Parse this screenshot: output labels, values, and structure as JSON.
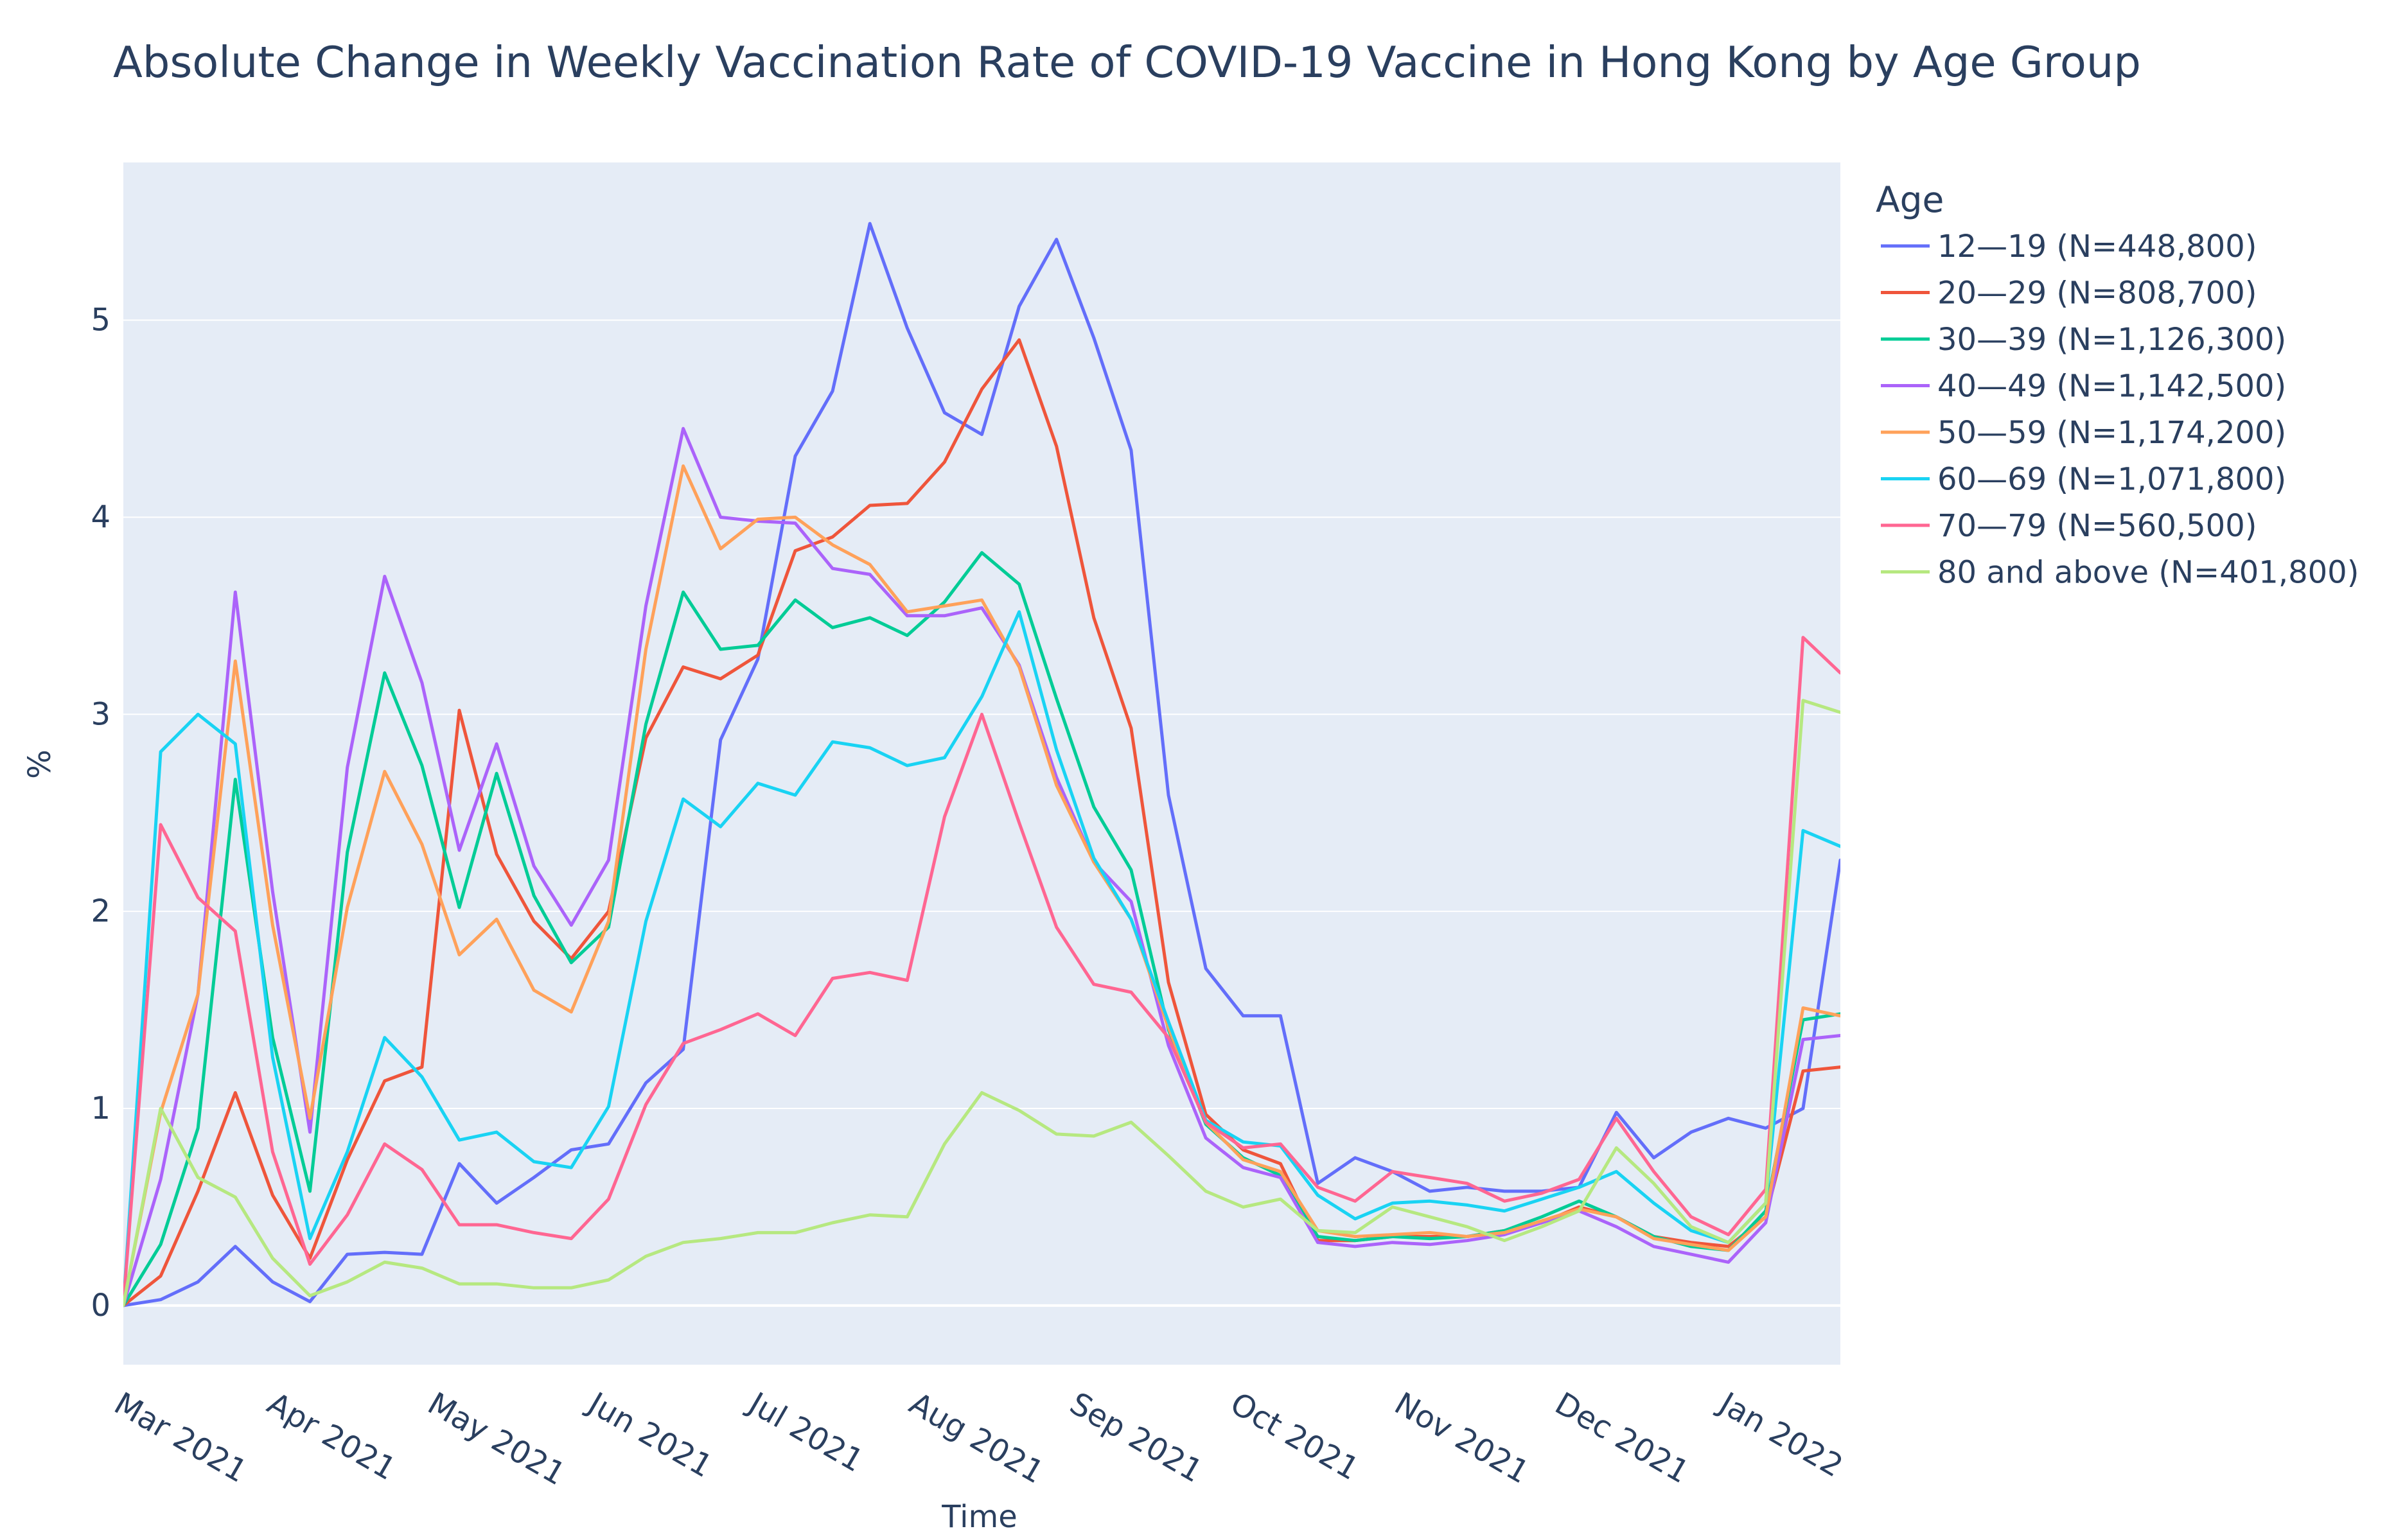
{
  "chart_data": {
    "type": "line",
    "title": "Absolute Change in Weekly Vaccination Rate of COVID-19 Vaccine in Hong Kong by Age Group",
    "xlabel": "Time",
    "ylabel": "%",
    "ylim": [
      -0.3,
      5.8
    ],
    "y_ticks": [
      0,
      1,
      2,
      3,
      4,
      5
    ],
    "x_ticks": [
      "Mar 2021",
      "Apr 2021",
      "May 2021",
      "Jun 2021",
      "Jul 2021",
      "Aug 2021",
      "Sep 2021",
      "Oct 2021",
      "Nov 2021",
      "Dec 2021",
      "Jan 2022"
    ],
    "x_tick_weeks": [
      0,
      4.1,
      8.4,
      12.7,
      17.0,
      21.3,
      25.6,
      29.9,
      34.3,
      38.6,
      43.0
    ],
    "x_weeks": [
      0,
      1,
      2,
      3,
      4,
      5,
      6,
      7,
      8,
      9,
      10,
      11,
      12,
      13,
      14,
      15,
      16,
      17,
      18,
      19,
      20,
      21,
      22,
      23,
      24,
      25,
      26,
      27,
      28,
      29,
      30,
      31,
      32,
      33,
      34,
      35,
      36,
      37,
      38,
      39,
      40,
      41,
      42,
      43,
      44,
      45,
      46
    ],
    "legend_title": "Age",
    "series": [
      {
        "name": "12—19 (N=448,800)",
        "color": "#636efa",
        "values": [
          0,
          0.03,
          0.12,
          0.3,
          0.12,
          0.02,
          0.26,
          0.27,
          0.26,
          0.72,
          0.52,
          0.65,
          0.79,
          0.82,
          1.13,
          1.3,
          2.87,
          3.28,
          4.31,
          4.64,
          5.49,
          4.96,
          4.53,
          4.42,
          5.07,
          5.41,
          4.91,
          4.34,
          2.59,
          1.71,
          1.47,
          1.47,
          0.62,
          0.75,
          0.68,
          0.58,
          0.6,
          0.58,
          0.58,
          0.6,
          0.98,
          0.75,
          0.88,
          0.95,
          0.9,
          1.0,
          2.26
        ]
      },
      {
        "name": "20—29 (N=808,700)",
        "color": "#ef553b",
        "values": [
          0,
          0.15,
          0.58,
          1.08,
          0.56,
          0.24,
          0.74,
          1.14,
          1.21,
          3.02,
          2.29,
          1.95,
          1.76,
          2.0,
          2.88,
          3.24,
          3.18,
          3.3,
          3.83,
          3.9,
          4.06,
          4.07,
          4.28,
          4.65,
          4.9,
          4.36,
          3.49,
          2.93,
          1.64,
          0.97,
          0.79,
          0.72,
          0.33,
          0.33,
          0.35,
          0.35,
          0.35,
          0.38,
          0.42,
          0.5,
          0.45,
          0.35,
          0.32,
          0.3,
          0.45,
          1.19,
          1.21
        ]
      },
      {
        "name": "30—39 (N=1,126,300)",
        "color": "#00cc96",
        "values": [
          0,
          0.31,
          0.9,
          2.67,
          1.36,
          0.58,
          2.3,
          3.21,
          2.74,
          2.02,
          2.7,
          2.08,
          1.74,
          1.92,
          2.95,
          3.62,
          3.33,
          3.35,
          3.58,
          3.44,
          3.49,
          3.4,
          3.57,
          3.82,
          3.66,
          3.08,
          2.53,
          2.21,
          1.4,
          0.92,
          0.75,
          0.66,
          0.35,
          0.33,
          0.35,
          0.34,
          0.35,
          0.38,
          0.45,
          0.53,
          0.45,
          0.35,
          0.3,
          0.28,
          0.48,
          1.45,
          1.48
        ]
      },
      {
        "name": "40—49 (N=1,142,500)",
        "color": "#ab63fa",
        "values": [
          0,
          0.64,
          1.58,
          3.62,
          2.1,
          0.88,
          2.73,
          3.7,
          3.16,
          2.31,
          2.85,
          2.23,
          1.93,
          2.26,
          3.55,
          4.45,
          4.0,
          3.98,
          3.97,
          3.74,
          3.71,
          3.5,
          3.5,
          3.54,
          3.25,
          2.68,
          2.25,
          2.05,
          1.32,
          0.85,
          0.7,
          0.65,
          0.32,
          0.3,
          0.32,
          0.31,
          0.33,
          0.36,
          0.42,
          0.48,
          0.4,
          0.3,
          0.26,
          0.22,
          0.42,
          1.35,
          1.37
        ]
      },
      {
        "name": "50—59 (N=1,174,200)",
        "color": "#ffa15a",
        "values": [
          0,
          0.98,
          1.58,
          3.27,
          1.93,
          0.95,
          2.02,
          2.71,
          2.34,
          1.78,
          1.96,
          1.6,
          1.49,
          1.95,
          3.33,
          4.26,
          3.84,
          3.99,
          4.0,
          3.86,
          3.76,
          3.52,
          3.55,
          3.58,
          3.24,
          2.64,
          2.25,
          1.96,
          1.41,
          0.93,
          0.74,
          0.68,
          0.38,
          0.35,
          0.36,
          0.37,
          0.35,
          0.37,
          0.43,
          0.49,
          0.45,
          0.34,
          0.31,
          0.28,
          0.45,
          1.51,
          1.47
        ]
      },
      {
        "name": "60—69 (N=1,071,800)",
        "color": "#19d3f3",
        "values": [
          0,
          2.81,
          3.0,
          2.85,
          1.26,
          0.34,
          0.78,
          1.36,
          1.16,
          0.84,
          0.88,
          0.73,
          0.7,
          1.01,
          1.95,
          2.57,
          2.43,
          2.65,
          2.59,
          2.86,
          2.83,
          2.74,
          2.78,
          3.09,
          3.52,
          2.82,
          2.27,
          1.96,
          1.44,
          0.94,
          0.83,
          0.81,
          0.56,
          0.44,
          0.52,
          0.53,
          0.51,
          0.48,
          0.54,
          0.6,
          0.68,
          0.52,
          0.38,
          0.32,
          0.52,
          2.41,
          2.33
        ]
      },
      {
        "name": "70—79 (N=560,500)",
        "color": "#ff6692",
        "values": [
          0,
          2.44,
          2.07,
          1.9,
          0.78,
          0.21,
          0.46,
          0.82,
          0.69,
          0.41,
          0.41,
          0.37,
          0.34,
          0.54,
          1.02,
          1.33,
          1.4,
          1.48,
          1.37,
          1.66,
          1.69,
          1.65,
          2.48,
          3.0,
          2.45,
          1.92,
          1.63,
          1.59,
          1.36,
          0.93,
          0.8,
          0.82,
          0.6,
          0.53,
          0.68,
          0.65,
          0.62,
          0.53,
          0.57,
          0.64,
          0.95,
          0.68,
          0.45,
          0.36,
          0.59,
          3.39,
          3.21
        ]
      },
      {
        "name": "80 and above (N=401,800)",
        "color": "#b6e880",
        "values": [
          0,
          1.0,
          0.65,
          0.55,
          0.24,
          0.05,
          0.12,
          0.22,
          0.19,
          0.11,
          0.11,
          0.09,
          0.09,
          0.13,
          0.25,
          0.32,
          0.34,
          0.37,
          0.37,
          0.42,
          0.46,
          0.45,
          0.82,
          1.08,
          0.99,
          0.87,
          0.86,
          0.93,
          0.76,
          0.58,
          0.5,
          0.54,
          0.38,
          0.37,
          0.5,
          0.45,
          0.4,
          0.33,
          0.4,
          0.48,
          0.8,
          0.62,
          0.4,
          0.32,
          0.52,
          3.07,
          3.01
        ]
      }
    ]
  }
}
